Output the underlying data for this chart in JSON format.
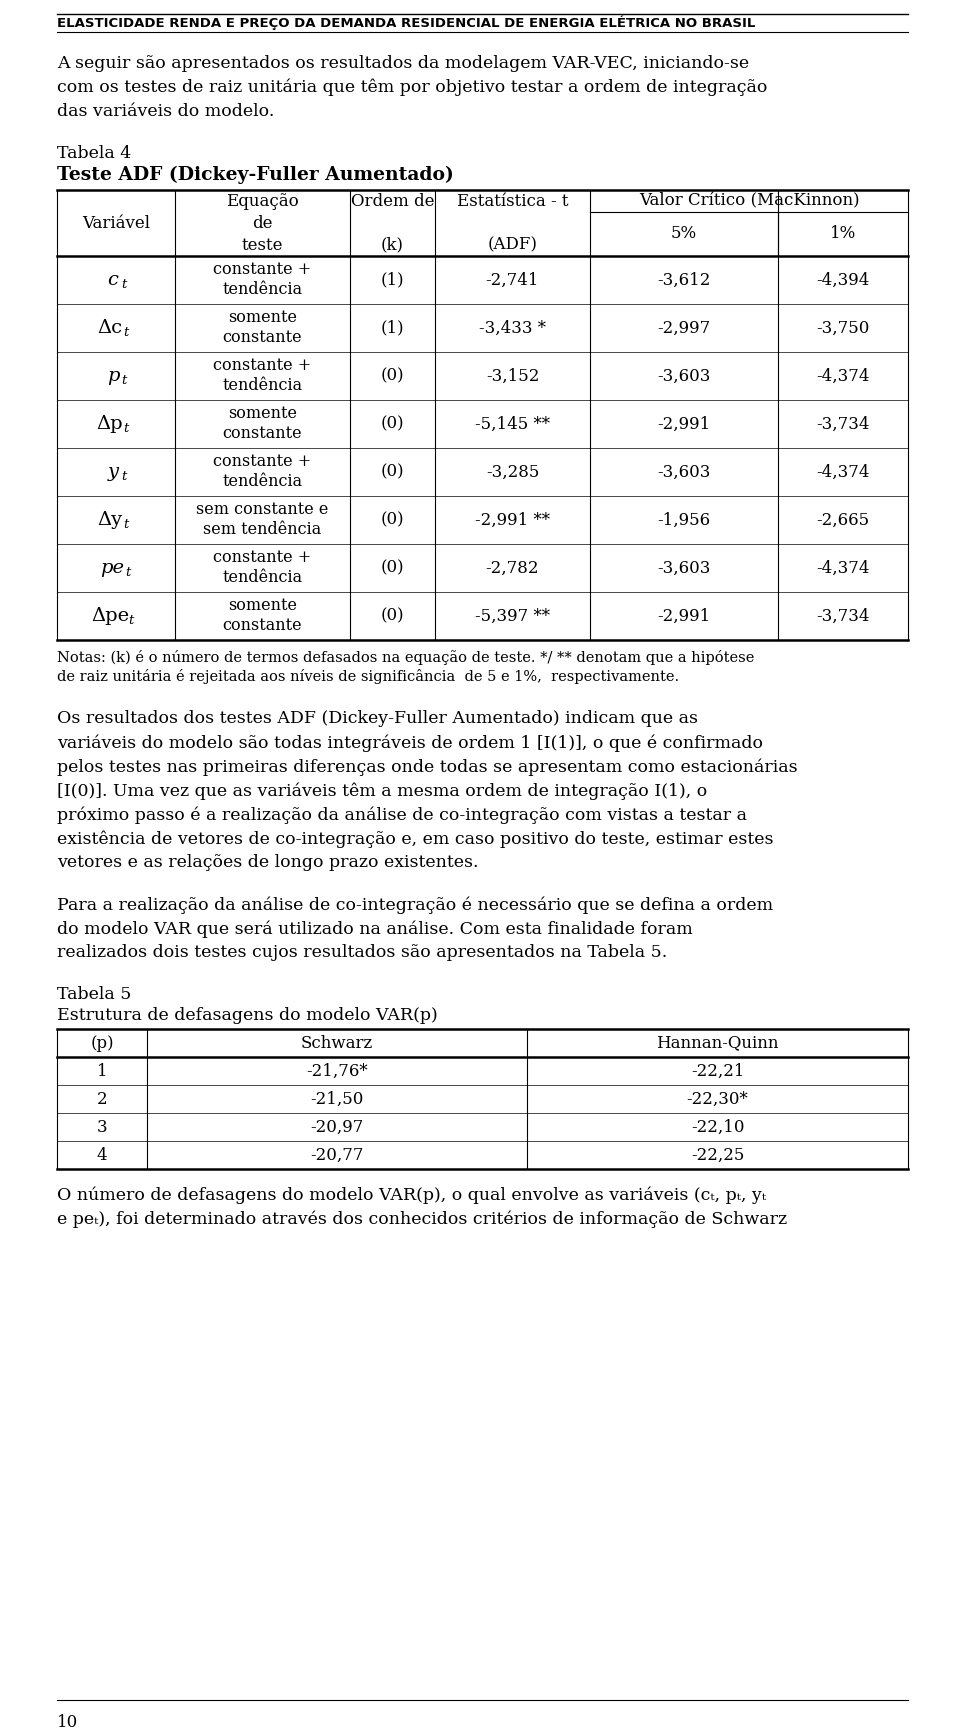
{
  "page_title": "ELASTICIDADE RENDA E PREÇO DA DEMANDA RESIDENCIAL DE ENERGIA ELÉTRICA NO BRASIL",
  "para1_lines": [
    "A seguir são apresentados os resultados da modelagem VAR-VEC, iniciando-se",
    "com os testes de raiz unitária que têm por objetivo testar a ordem de integração",
    "das variáveis do modelo."
  ],
  "tabela4_label": "Tabela 4",
  "tabela4_title": "Teste ADF (Dickey-Fuller Aumentado)",
  "table4_rows": [
    [
      "c_t",
      "constante +\ntendência",
      "(1)",
      "-2,741",
      "-3,612",
      "-4,394"
    ],
    [
      "Δc_t",
      "somente\nconstante",
      "(1)",
      "-3,433 *",
      "-2,997",
      "-3,750"
    ],
    [
      "p_t",
      "constante +\ntendência",
      "(0)",
      "-3,152",
      "-3,603",
      "-4,374"
    ],
    [
      "Δp_t",
      "somente\nconstante",
      "(0)",
      "-5,145 **",
      "-2,991",
      "-3,734"
    ],
    [
      "y_t",
      "constante +\ntendência",
      "(0)",
      "-3,285",
      "-3,603",
      "-4,374"
    ],
    [
      "Δy_t",
      "sem constante e\nsem tendência",
      "(0)",
      "-2,991 **",
      "-1,956",
      "-2,665"
    ],
    [
      "pe_t",
      "constante +\ntendência",
      "(0)",
      "-2,782",
      "-3,603",
      "-4,374"
    ],
    [
      "Δpe_t",
      "somente\nconstante",
      "(0)",
      "-5,397 **",
      "-2,991",
      "-3,734"
    ]
  ],
  "nota_lines": [
    "Notas: (k) é o número de termos defasados na equação de teste. */ ** denotam que a hipótese",
    "de raiz unitária é rejeitada aos níveis de significância  de 5 e 1%,  respectivamente."
  ],
  "para2_lines": [
    "Os resultados dos testes ADF (Dickey-Fuller Aumentado) indicam que as",
    "variáveis do modelo são todas integráveis de ordem 1 [I(1)], o que é confirmado",
    "pelos testes nas primeiras diferenças onde todas se apresentam como estacionárias",
    "[I(0)]. Uma vez que as variáveis têm a mesma ordem de integração I(1), o",
    "próximo passo é a realização da análise de co-integração com vistas a testar a",
    "existência de vetores de co-integração e, em caso positivo do teste, estimar estes",
    "vetores e as relações de longo prazo existentes."
  ],
  "para3_lines": [
    "Para a realização da análise de co-integração é necessário que se defina a ordem",
    "do modelo VAR que será utilizado na análise. Com esta finalidade foram",
    "realizados dois testes cujos resultados são apresentados na Tabela 5."
  ],
  "tabela5_label": "Tabela 5",
  "tabela5_title": "Estrutura de defasagens do modelo VAR(p)",
  "table5_rows": [
    [
      "1",
      "-21,76*",
      "-22,21"
    ],
    [
      "2",
      "-21,50",
      "-22,30*"
    ],
    [
      "3",
      "-20,97",
      "-22,10"
    ],
    [
      "4",
      "-20,77",
      "-22,25"
    ]
  ],
  "para4_lines": [
    "O número de defasagens do modelo VAR(p), o qual envolve as variáveis (c_t, p_t, y_t",
    "e pe_t), foi determinado através dos conhecidos critérios de informação de Schwarz"
  ],
  "page_number": "10",
  "bg_color": "#ffffff"
}
